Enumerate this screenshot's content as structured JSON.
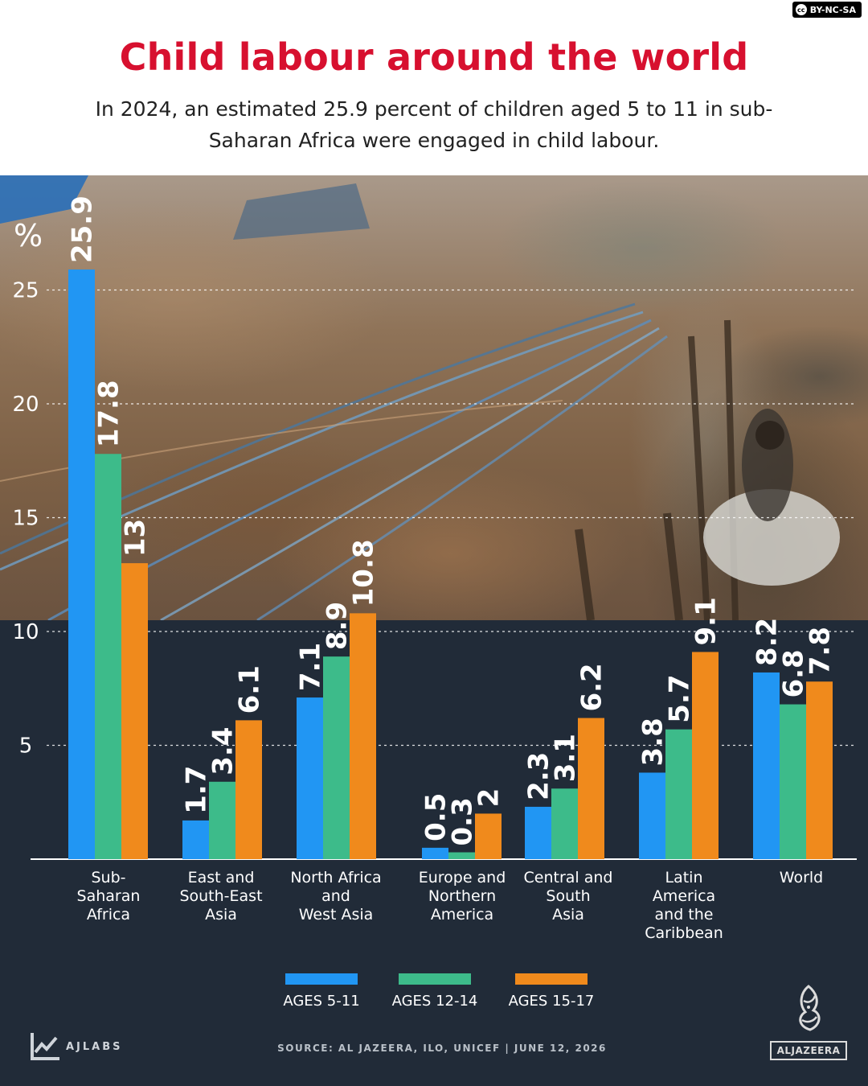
{
  "header": {
    "license": "BY-NC-SA",
    "title": "Child labour around the world",
    "subtitle": "In 2024, an estimated 25.9 percent of children aged 5 to 11 in sub-Saharan Africa were engaged in child labour."
  },
  "colors": {
    "title": "#d7102f",
    "ages_5_11": "#2196f3",
    "ages_12_14": "#3dbb8a",
    "ages_15_17": "#f08a1c",
    "dark_background": "#212b38"
  },
  "chart_data": {
    "type": "bar",
    "unit_label": "%",
    "ylim": [
      0,
      27
    ],
    "yticks": [
      5,
      10,
      15,
      20,
      25
    ],
    "grid": "dashed horizontal",
    "legend_position": "bottom",
    "categories": [
      "Sub-\nSaharan\nAfrica",
      "East and\nSouth-East\nAsia",
      "North Africa\nand\nWest Asia",
      "Europe and\nNorthern\nAmerica",
      "Central and\nSouth\nAsia",
      "Latin\nAmerica\nand the\nCaribbean",
      "World"
    ],
    "series": [
      {
        "name": "AGES 5-11",
        "color": "#2196f3",
        "values": [
          25.9,
          1.7,
          7.1,
          0.5,
          2.3,
          3.8,
          8.2
        ],
        "labels": [
          "25.9",
          "1.7",
          "7.1",
          "0.5",
          "2.3",
          "3.8",
          "8.2"
        ]
      },
      {
        "name": "AGES 12-14",
        "color": "#3dbb8a",
        "values": [
          17.8,
          3.4,
          8.9,
          0.3,
          3.1,
          5.7,
          6.8
        ],
        "labels": [
          "17.8",
          "3.4",
          "8.9",
          "0.3",
          "3.1",
          "5.7",
          "6.8"
        ]
      },
      {
        "name": "AGES 15-17",
        "color": "#f08a1c",
        "values": [
          13,
          6.1,
          10.8,
          2,
          6.2,
          9.1,
          7.8
        ],
        "labels": [
          "13",
          "6.1",
          "10.8",
          "2",
          "6.2",
          "9.1",
          "7.8"
        ]
      }
    ]
  },
  "footer": {
    "brand": "AJLABS",
    "source": "SOURCE: AL JAZEERA, ILO, UNICEF   |   JUNE 12, 2026",
    "logo_text": "ALJAZEERA"
  }
}
